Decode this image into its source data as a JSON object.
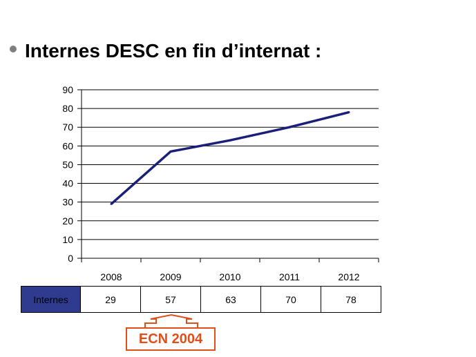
{
  "slide": {
    "title": "Internes DESC en fin d’internat :",
    "callout": "ECN 2004"
  },
  "chart_data": {
    "type": "line",
    "title": "",
    "xlabel": "",
    "ylabel": "",
    "categories": [
      "2008",
      "2009",
      "2010",
      "2011",
      "2012"
    ],
    "series": [
      {
        "name": "Internes",
        "values": [
          29,
          57,
          63,
          70,
          78
        ]
      }
    ],
    "ylim": [
      0,
      90
    ],
    "yticks": [
      0,
      10,
      20,
      30,
      40,
      50,
      60,
      70,
      80,
      90
    ],
    "grid": true,
    "legend": "none",
    "data_table": true,
    "line_color": "#1a1f7a",
    "series_key_color": "#2e3b8f",
    "callout_color": "#e04f1a"
  }
}
